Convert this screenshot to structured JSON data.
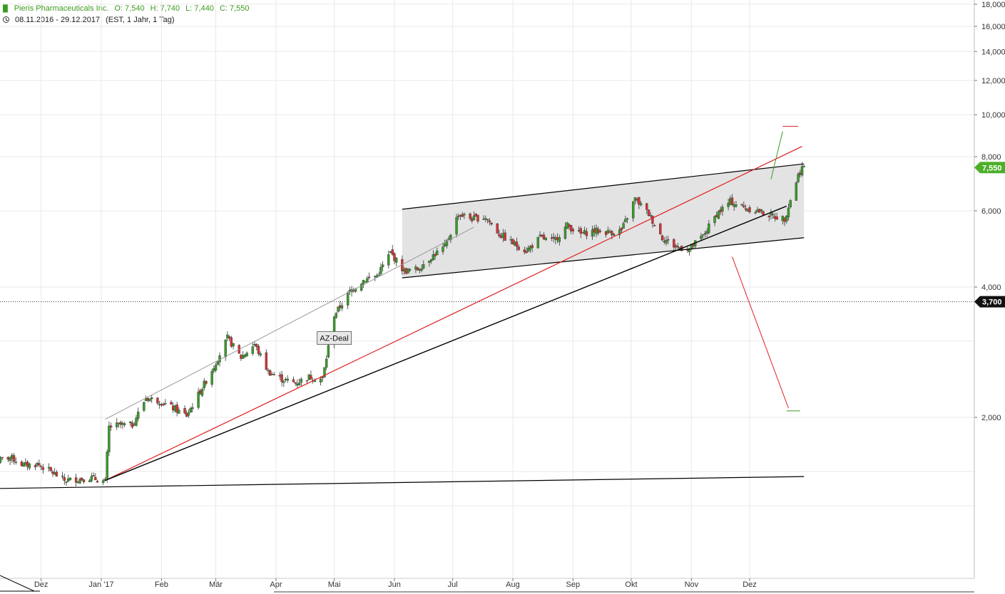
{
  "header": {
    "symbol_icon": "candlestick-icon",
    "instrument": "Pieris Pharmaceuticals Inc.",
    "ohlc": {
      "open": "O: 7,540",
      "high": "H: 7,740",
      "low": "L: 7,440",
      "close": "C: 7,550"
    },
    "clock_icon": "clock-icon",
    "date_range": "08.11.2016 - 29.12.2017",
    "settings": "(EST, 1 Jahr, 1 Tag)"
  },
  "colors": {
    "up": "#3a9a2a",
    "down": "#d23434",
    "trend_red": "#e02020",
    "channel_fill": "#e3e3e3",
    "grid": "#e9e9e9",
    "badge_green": "#4caf2a"
  },
  "chart_data": {
    "type": "candlestick",
    "title": "",
    "xlabel": "",
    "ylabel": "",
    "y_scale": "log",
    "ylim": [
      1.25,
      18.0
    ],
    "x_range": [
      "2016-11-08",
      "2017-12-29"
    ],
    "y_ticks": [
      "18,000",
      "16,000",
      "14,000",
      "12,000",
      "10,000",
      "8,000",
      "6,000",
      "4,000",
      "2,000"
    ],
    "x_ticks": [
      {
        "date": "2016-12-01",
        "label": "Dez"
      },
      {
        "date": "2017-01-01",
        "label": "Jan '17"
      },
      {
        "date": "2017-02-01",
        "label": "Feb"
      },
      {
        "date": "2017-03-01",
        "label": "Mär"
      },
      {
        "date": "2017-04-01",
        "label": "Apr"
      },
      {
        "date": "2017-05-01",
        "label": "Mai"
      },
      {
        "date": "2017-06-01",
        "label": "Jun"
      },
      {
        "date": "2017-07-01",
        "label": "Jul"
      },
      {
        "date": "2017-08-01",
        "label": "Aug"
      },
      {
        "date": "2017-09-01",
        "label": "Sep"
      },
      {
        "date": "2017-10-01",
        "label": "Okt"
      },
      {
        "date": "2017-11-01",
        "label": "Nov"
      },
      {
        "date": "2017-12-01",
        "label": "Dez"
      }
    ],
    "last_price": {
      "value": 7.55,
      "label": "7,550"
    },
    "reference_level": {
      "value": 3.7,
      "label": "3,700"
    },
    "annotation": {
      "text": "AZ-Deal",
      "date": "2017-05-01",
      "value": 3.05
    },
    "series": [
      {
        "dates": [
          "2016-11-08",
          "2016-11-15",
          "2016-11-22",
          "2016-11-29",
          "2016-12-06",
          "2016-12-13",
          "2016-12-20",
          "2016-12-27",
          "2017-01-03",
          "2017-01-05",
          "2017-01-10",
          "2017-01-17",
          "2017-01-24",
          "2017-01-31",
          "2017-02-07",
          "2017-02-14",
          "2017-02-21",
          "2017-02-28",
          "2017-03-07",
          "2017-03-14",
          "2017-03-21",
          "2017-03-28",
          "2017-04-04",
          "2017-04-11",
          "2017-04-18",
          "2017-04-25",
          "2017-05-01",
          "2017-05-03",
          "2017-05-09",
          "2017-05-16",
          "2017-05-23",
          "2017-05-30",
          "2017-06-06",
          "2017-06-13",
          "2017-06-20",
          "2017-06-27",
          "2017-07-04",
          "2017-07-11",
          "2017-07-18",
          "2017-07-25",
          "2017-08-01",
          "2017-08-08",
          "2017-08-15",
          "2017-08-22",
          "2017-08-29",
          "2017-09-05",
          "2017-09-12",
          "2017-09-19",
          "2017-09-26",
          "2017-10-03",
          "2017-10-10",
          "2017-10-17",
          "2017-10-24",
          "2017-10-31",
          "2017-11-07",
          "2017-11-14",
          "2017-11-21",
          "2017-11-28",
          "2017-12-05",
          "2017-12-12",
          "2017-12-19",
          "2017-12-26",
          "2017-12-28"
        ],
        "close": [
          1.58,
          1.62,
          1.55,
          1.56,
          1.5,
          1.43,
          1.44,
          1.45,
          1.42,
          1.9,
          1.92,
          1.92,
          2.22,
          2.18,
          2.1,
          2.02,
          2.3,
          2.62,
          3.05,
          2.75,
          2.95,
          2.55,
          2.45,
          2.4,
          2.48,
          2.45,
          3.45,
          3.55,
          3.9,
          4.15,
          4.25,
          4.8,
          4.35,
          4.4,
          4.7,
          4.95,
          5.9,
          5.75,
          5.8,
          5.3,
          5.05,
          4.85,
          5.2,
          5.1,
          5.55,
          5.3,
          5.4,
          5.35,
          5.4,
          6.4,
          5.9,
          5.2,
          4.95,
          4.9,
          5.25,
          5.9,
          6.3,
          6.1,
          6.0,
          5.85,
          5.75,
          7.25,
          7.55
        ]
      }
    ]
  },
  "drawings": [
    {
      "name": "channel-upper-line",
      "color": "#000000",
      "width": 1.2,
      "from": {
        "date": "2017-06-05",
        "value": 6.05
      },
      "to": {
        "date": "2017-12-29",
        "value": 7.7
      }
    },
    {
      "name": "channel-lower-line",
      "color": "#000000",
      "width": 1.2,
      "from": {
        "date": "2017-06-05",
        "value": 4.2
      },
      "to": {
        "date": "2017-12-29",
        "value": 5.2
      }
    },
    {
      "name": "thin-gray-trendline",
      "color": "#999999",
      "width": 1,
      "from": {
        "date": "2017-01-03",
        "value": 1.98
      },
      "to": {
        "date": "2017-07-12",
        "value": 5.5
      }
    },
    {
      "name": "red-trendline",
      "color": "#e02020",
      "width": 1.2,
      "from": {
        "date": "2017-01-03",
        "value": 1.43
      },
      "to": {
        "date": "2017-12-28",
        "value": 8.45
      }
    },
    {
      "name": "black-support-trendline",
      "color": "#000000",
      "width": 1.4,
      "from": {
        "date": "2017-01-03",
        "value": 1.43
      },
      "to": {
        "date": "2017-12-20",
        "value": 6.15
      }
    },
    {
      "name": "long-horizontal-support",
      "color": "#000000",
      "width": 1.2,
      "from": {
        "date": "2016-11-08",
        "value": 1.37
      },
      "to": {
        "date": "2017-12-29",
        "value": 1.46
      }
    },
    {
      "name": "green-target-up-line",
      "color": "#3a9a2a",
      "width": 1,
      "from": {
        "date": "2017-12-12",
        "value": 7.1
      },
      "to": {
        "date": "2017-12-18",
        "value": 9.15
      }
    },
    {
      "name": "red-target-up-level",
      "color": "#e02020",
      "width": 1,
      "from": {
        "date": "2017-12-18",
        "value": 9.4
      },
      "to": {
        "date": "2017-12-26",
        "value": 9.4
      }
    },
    {
      "name": "red-target-down-line",
      "color": "#e02020",
      "width": 1,
      "from": {
        "date": "2017-11-22",
        "value": 4.7
      },
      "to": {
        "date": "2017-12-21",
        "value": 2.1
      }
    },
    {
      "name": "green-target-down-level",
      "color": "#3a9a2a",
      "width": 1,
      "from": {
        "date": "2017-12-20",
        "value": 2.07
      },
      "to": {
        "date": "2017-12-27",
        "value": 2.07
      }
    }
  ],
  "channel_fill": {
    "name": "channel-shaded-area",
    "from_date": "2017-06-05",
    "to_date": "2017-12-29",
    "lower": [
      4.2,
      5.2
    ],
    "upper": [
      6.05,
      7.7
    ]
  }
}
